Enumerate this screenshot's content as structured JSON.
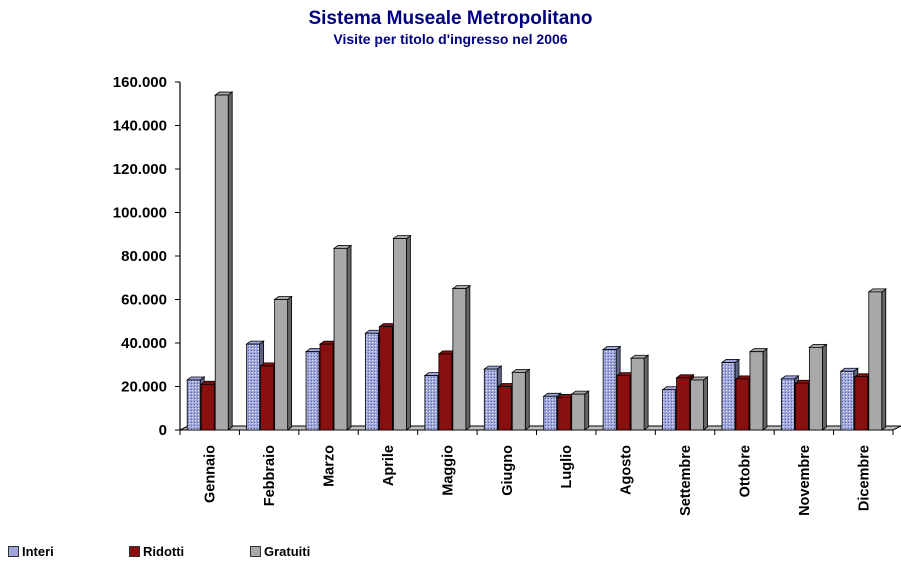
{
  "chart_data": {
    "type": "bar",
    "title": "Sistema Museale Metropolitano",
    "subtitle": "Visite per titolo d'ingresso nel 2006",
    "categories": [
      "Gennaio",
      "Febbraio",
      "Marzo",
      "Aprile",
      "Maggio",
      "Giugno",
      "Luglio",
      "Agosto",
      "Settembre",
      "Ottobre",
      "Novembre",
      "Dicembre"
    ],
    "series": [
      {
        "name": "Interi",
        "color": "#9ea6dc",
        "values": [
          23000,
          39500,
          36000,
          44500,
          25000,
          28000,
          15500,
          37000,
          18500,
          31000,
          23500,
          27000
        ]
      },
      {
        "name": "Ridotti",
        "color": "#8a0f0f",
        "values": [
          21000,
          29500,
          39500,
          47500,
          35000,
          20000,
          15000,
          25000,
          24000,
          23500,
          21500,
          24500
        ]
      },
      {
        "name": "Gratuiti",
        "color": "#a9a9a9",
        "values": [
          154000,
          60000,
          83500,
          88000,
          65000,
          26500,
          16500,
          33000,
          23000,
          36000,
          38000,
          63500
        ]
      }
    ],
    "yticks": [
      "0",
      "20.000",
      "40.000",
      "60.000",
      "80.000",
      "100.000",
      "120.000",
      "140.000",
      "160.000"
    ],
    "ylim": [
      0,
      160000
    ],
    "grid": false,
    "legend_position": "bottom-left"
  }
}
